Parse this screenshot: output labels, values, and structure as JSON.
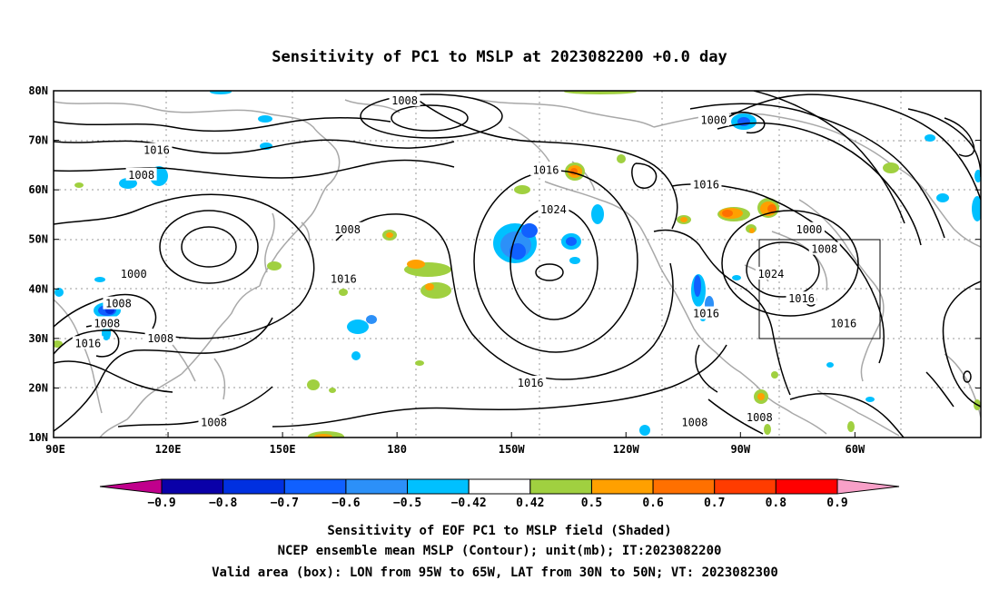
{
  "title": "Sensitivity of PC1 to MSLP at 2023082200 +0.0 day",
  "map": {
    "lat_labels": [
      "80N",
      "70N",
      "60N",
      "50N",
      "40N",
      "30N",
      "20N",
      "10N"
    ],
    "lon_labels": [
      "90E",
      "120E",
      "150E",
      "180",
      "150W",
      "120W",
      "90W",
      "60W"
    ],
    "valid_box": {
      "lon_from": "95W",
      "lon_to": "65W",
      "lat_from": "30N",
      "lat_to": "50N"
    },
    "contour_labels": [
      {
        "text": "1008",
        "lon": 182,
        "lat": 78
      },
      {
        "text": "1016",
        "lon": 117,
        "lat": 68
      },
      {
        "text": "1008",
        "lon": 113,
        "lat": 63
      },
      {
        "text": "1016",
        "lon": 219,
        "lat": 64
      },
      {
        "text": "1024",
        "lon": 221,
        "lat": 56
      },
      {
        "text": "1008",
        "lon": 167,
        "lat": 52
      },
      {
        "text": "1000",
        "lon": 111,
        "lat": 43
      },
      {
        "text": "1016",
        "lon": 166,
        "lat": 42
      },
      {
        "text": "1008",
        "lon": 107,
        "lat": 37
      },
      {
        "text": "1008",
        "lon": 104,
        "lat": 33
      },
      {
        "text": "1016",
        "lon": 99,
        "lat": 29
      },
      {
        "text": "1008",
        "lon": 118,
        "lat": 30
      },
      {
        "text": "1016",
        "lon": 215,
        "lat": 21
      },
      {
        "text": "1008",
        "lon": 132,
        "lat": 13
      },
      {
        "text": "1000",
        "lon": 263,
        "lat": 74
      },
      {
        "text": "1016",
        "lon": 261,
        "lat": 61
      },
      {
        "text": "1000",
        "lon": 288,
        "lat": 52
      },
      {
        "text": "1008",
        "lon": 292,
        "lat": 48
      },
      {
        "text": "1024",
        "lon": 278,
        "lat": 43
      },
      {
        "text": "1016",
        "lon": 286,
        "lat": 38
      },
      {
        "text": "1016",
        "lon": 261,
        "lat": 35
      },
      {
        "text": "1016",
        "lon": 297,
        "lat": 33
      },
      {
        "text": "1008",
        "lon": 258,
        "lat": 13
      },
      {
        "text": "1008",
        "lon": 275,
        "lat": 14
      }
    ]
  },
  "colorbar": {
    "labels": [
      "-0.9",
      "-0.8",
      "-0.7",
      "-0.6",
      "-0.5",
      "-0.42",
      "0.42",
      "0.5",
      "0.6",
      "0.7",
      "0.8",
      "0.9"
    ],
    "colors": [
      "#c0008c",
      "#0a00a8",
      "#0030e0",
      "#1060ff",
      "#2c90f8",
      "#00c0ff",
      "#ffffff",
      "#a0d040",
      "#ffa000",
      "#ff7000",
      "#ff3c00",
      "#ff0000",
      "#f8a0c8"
    ]
  },
  "captions": [
    "Sensitivity of EOF PC1 to MSLP field (Shaded)",
    "NCEP ensemble mean MSLP (Contour); unit(mb); IT:2023082200",
    "Valid area (box): LON from 95W to 65W, LAT from 30N to 50N; VT: 2023082300"
  ]
}
